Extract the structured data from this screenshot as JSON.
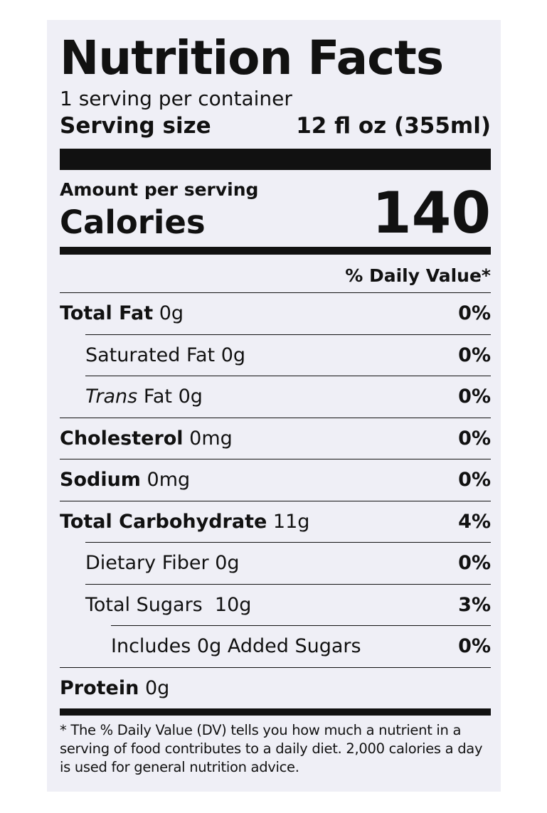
{
  "label": {
    "title": "Nutrition Facts",
    "servings_per_container": "1 serving per container",
    "serving_size_label": "Serving size",
    "serving_size_value": "12 fl oz (355ml)",
    "amount_per_serving": "Amount per serving",
    "calories_label": "Calories",
    "calories_value": "140",
    "daily_value_header": "% Daily Value*",
    "nutrients": [
      {
        "name": "Total Fat",
        "amount": "0g",
        "dv": "0%"
      },
      {
        "name": "Saturated Fat",
        "amount": "0g",
        "dv": "0%"
      },
      {
        "name": "Trans",
        "suffix": "Fat 0g",
        "dv": "0%"
      },
      {
        "name": "Cholesterol",
        "amount": "0mg",
        "dv": "0%"
      },
      {
        "name": "Sodium",
        "amount": "0mg",
        "dv": "0%"
      },
      {
        "name": "Total Carbohydrate",
        "amount": "11g",
        "dv": "4%"
      },
      {
        "name": "Dietary Fiber",
        "amount": "0g",
        "dv": "0%"
      },
      {
        "name": "Total Sugars",
        "amount": "10g",
        "dv": "3%"
      },
      {
        "name": "Includes 0g Added Sugars",
        "dv": "0%"
      },
      {
        "name": "Protein",
        "amount": "0g"
      }
    ],
    "footnote": "* The % Daily Value (DV) tells you how much a nutrient in a serving of food contributes to a daily diet. 2,000 calories a day is used for general nutrition advice."
  }
}
